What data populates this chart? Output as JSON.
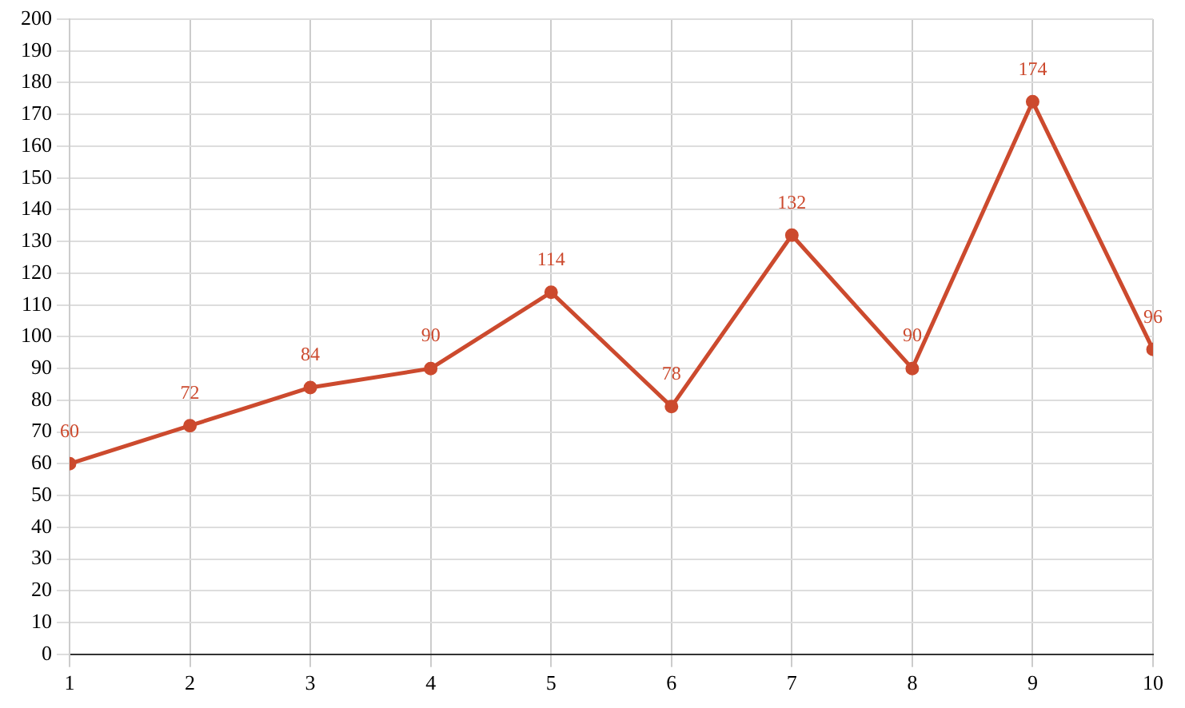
{
  "chart_data": {
    "type": "line",
    "x": [
      1,
      2,
      3,
      4,
      5,
      6,
      7,
      8,
      9,
      10
    ],
    "values": [
      60,
      72,
      84,
      90,
      114,
      78,
      132,
      90,
      174,
      96
    ],
    "color": "#cc4a2e",
    "xlim": [
      1,
      10
    ],
    "xticks": [
      1,
      2,
      3,
      4,
      5,
      6,
      7,
      8,
      9,
      10
    ],
    "ylim": [
      0,
      200
    ],
    "yticks": [
      0,
      10,
      20,
      30,
      40,
      50,
      60,
      70,
      80,
      90,
      100,
      110,
      120,
      130,
      140,
      150,
      160,
      170,
      180,
      190,
      200
    ],
    "grid": true,
    "data_labels": true,
    "marker": "circle"
  }
}
